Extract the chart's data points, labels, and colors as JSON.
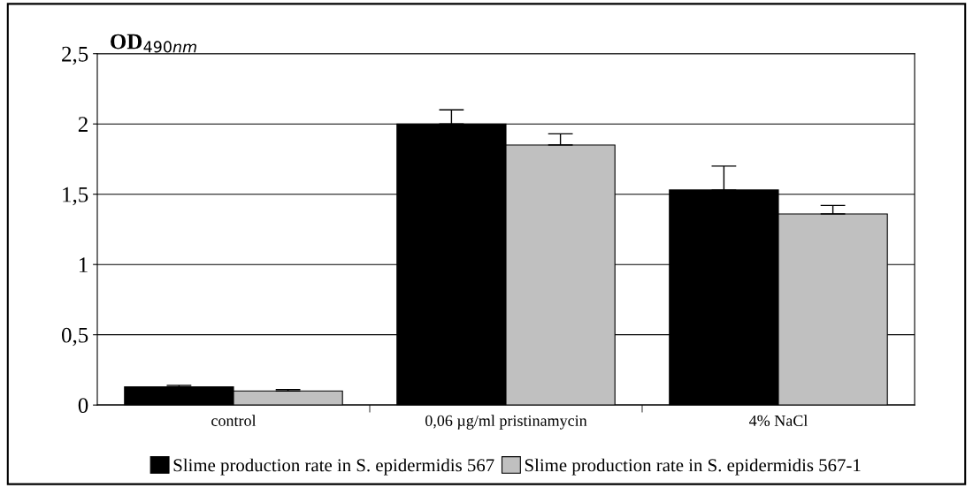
{
  "chart_data": {
    "type": "bar",
    "ylabel": "OD$_{490nm}$",
    "categories": [
      "control",
      "0,06 µg/ml pristinamycin",
      "4% NaCl"
    ],
    "series": [
      {
        "name": "Slime production rate in S. epidermidis 567",
        "color": "#000000",
        "values": [
          0.13,
          2.0,
          1.53
        ],
        "errors": [
          [
            0.13,
            0.14
          ],
          [
            2.0,
            2.1
          ],
          [
            1.53,
            1.7
          ]
        ]
      },
      {
        "name": "Slime production rate in S. epidermidis 567-1",
        "color": "#c0c0c0",
        "values": [
          0.1,
          1.85,
          1.36
        ],
        "errors": [
          [
            0.1,
            0.11
          ],
          [
            1.85,
            1.93
          ],
          [
            1.36,
            1.42
          ]
        ]
      }
    ],
    "ylim": [
      0,
      2.5
    ],
    "yticks": [
      0,
      {
        "value": 0.5,
        "label": "0,5"
      },
      1,
      {
        "value": 1.5,
        "label": "1,5"
      },
      2,
      {
        "value": 2.5,
        "label": "2,5"
      }
    ],
    "grid": "y",
    "legend": "bottom"
  }
}
